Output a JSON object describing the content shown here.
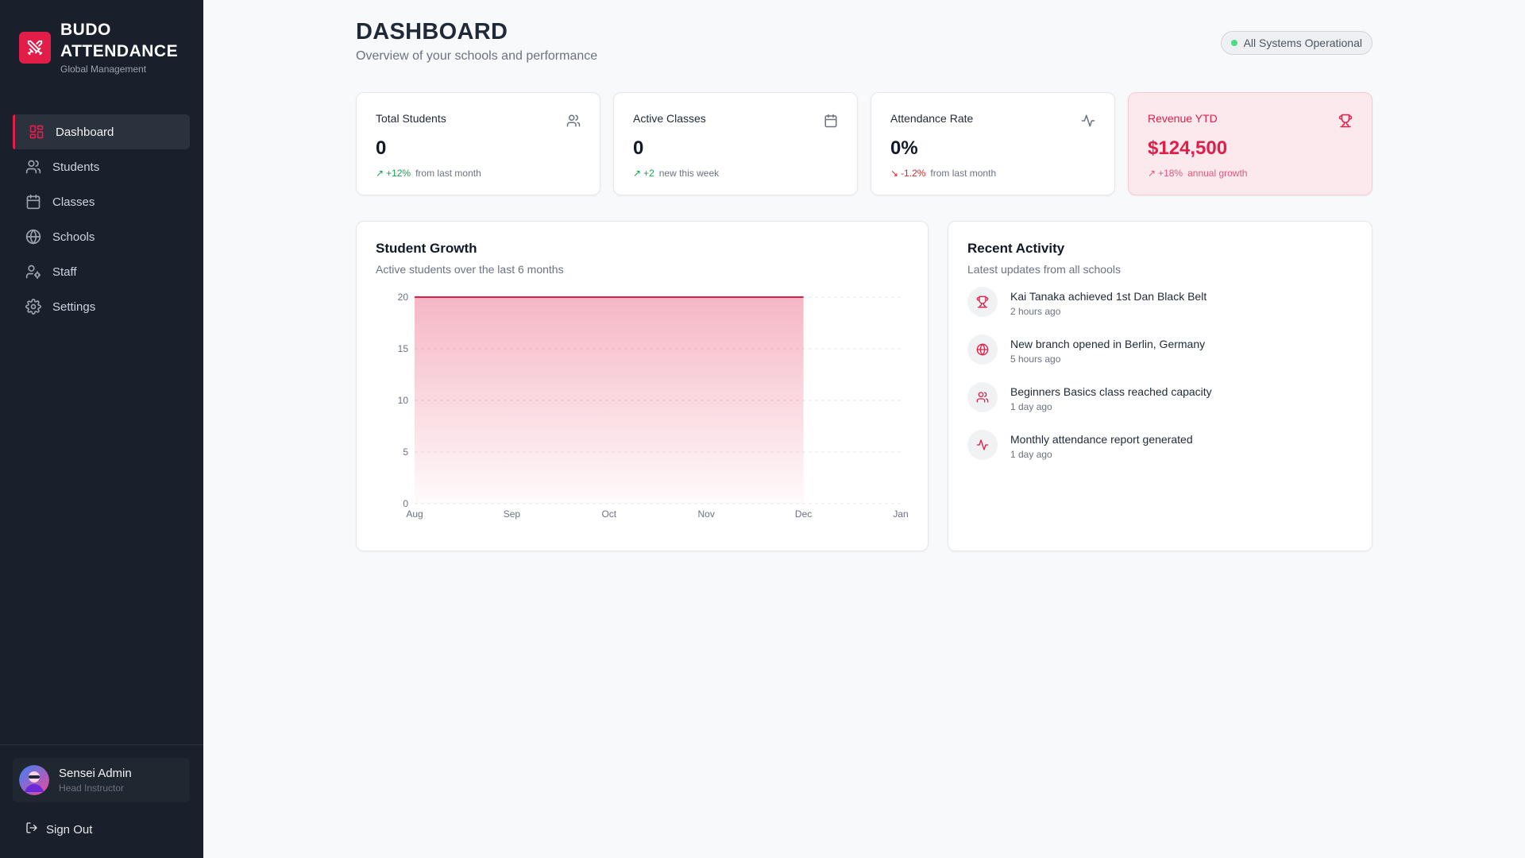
{
  "brand": {
    "title": "BUDO ATTENDANCE",
    "subtitle": "Global Management"
  },
  "nav": [
    {
      "label": "Dashboard",
      "icon": "dashboard-icon",
      "active": true
    },
    {
      "label": "Students",
      "icon": "users-icon"
    },
    {
      "label": "Classes",
      "icon": "calendar-icon"
    },
    {
      "label": "Schools",
      "icon": "globe-icon"
    },
    {
      "label": "Staff",
      "icon": "user-cog-icon"
    },
    {
      "label": "Settings",
      "icon": "gear-icon"
    }
  ],
  "user": {
    "name": "Sensei Admin",
    "role": "Head Instructor",
    "signout": "Sign Out"
  },
  "header": {
    "title": "DASHBOARD",
    "subtitle": "Overview of your schools and performance",
    "status": "All Systems Operational"
  },
  "stats": [
    {
      "label": "Total Students",
      "value": "0",
      "change": "+12%",
      "change_text": "from last month",
      "trend": "up",
      "icon": "users-icon"
    },
    {
      "label": "Active Classes",
      "value": "0",
      "change": "+2",
      "change_text": "new this week",
      "trend": "up",
      "icon": "calendar-icon"
    },
    {
      "label": "Attendance Rate",
      "value": "0%",
      "change": "-1.2%",
      "change_text": "from last month",
      "trend": "down",
      "icon": "activity-icon"
    },
    {
      "label": "Revenue YTD",
      "value": "$124,500",
      "change": "+18%",
      "change_text": "annual growth",
      "trend": "up",
      "icon": "trophy-icon"
    }
  ],
  "growth": {
    "title": "Student Growth",
    "subtitle": "Active students over the last 6 months"
  },
  "chart_data": {
    "type": "area",
    "categories": [
      "Aug",
      "Sep",
      "Oct",
      "Nov",
      "Dec",
      "Jan"
    ],
    "series": [
      {
        "values": [
          20,
          20,
          20,
          20,
          20,
          null
        ]
      }
    ],
    "yticks": [
      0,
      5,
      10,
      15,
      20
    ],
    "ylim": [
      0,
      20
    ],
    "grid": true,
    "color": "#e11d48"
  },
  "activity": {
    "title": "Recent Activity",
    "subtitle": "Latest updates from all schools",
    "items": [
      {
        "text": "Kai Tanaka achieved 1st Dan Black Belt",
        "time": "2 hours ago",
        "icon": "trophy-icon"
      },
      {
        "text": "New branch opened in Berlin, Germany",
        "time": "5 hours ago",
        "icon": "globe-icon"
      },
      {
        "text": "Beginners Basics class reached capacity",
        "time": "1 day ago",
        "icon": "users-icon"
      },
      {
        "text": "Monthly attendance report generated",
        "time": "1 day ago",
        "icon": "activity-icon"
      }
    ]
  },
  "colors": {
    "accent": "#e11d48",
    "sidebar": "#19202b",
    "success": "#16a34a",
    "danger": "#dc2626"
  }
}
